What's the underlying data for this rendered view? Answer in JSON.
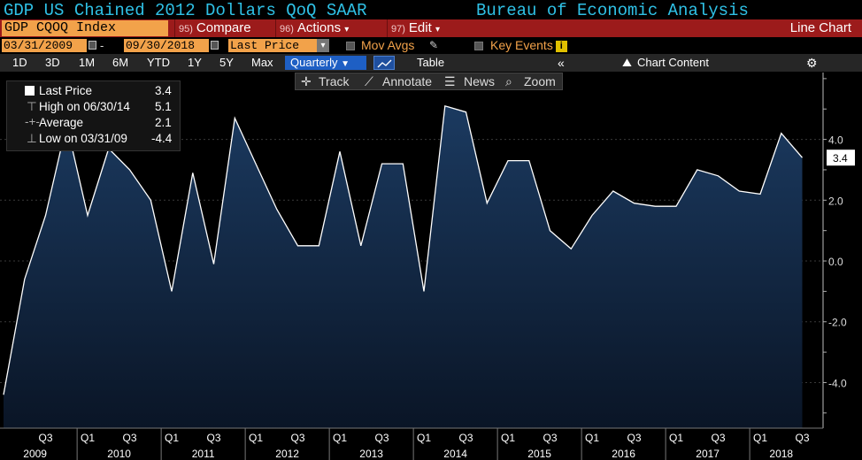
{
  "header": {
    "title": "GDP US Chained 2012 Dollars QoQ SAAR",
    "source": "Bureau of Economic Analysis"
  },
  "menu": {
    "ticker": "GDP CQOQ Index",
    "compare_num": "95)",
    "compare": "Compare",
    "actions_num": "96)",
    "actions": "Actions",
    "edit_num": "97)",
    "edit": "Edit",
    "chart_type": "Line Chart"
  },
  "dates": {
    "start": "03/31/2009",
    "end": "09/30/2018",
    "price_field": "Last Price",
    "mov_avgs": "Mov Avgs",
    "key_events": "Key Events"
  },
  "range": {
    "buttons": [
      "1D",
      "3D",
      "1M",
      "6M",
      "YTD",
      "1Y",
      "5Y",
      "Max"
    ],
    "period": "Quarterly",
    "table": "Table",
    "chart_content": "Chart Content"
  },
  "tools": {
    "track": "Track",
    "annotate": "Annotate",
    "news": "News",
    "zoom": "Zoom"
  },
  "legend": {
    "last_label": "Last Price",
    "last_value": "3.4",
    "high_label": "High on 06/30/14",
    "high_value": "5.1",
    "avg_label": "Average",
    "avg_value": "2.1",
    "low_label": "Low on 03/31/09",
    "low_value": "-4.4"
  },
  "colors": {
    "line": "#ffffff",
    "fill_top": "#1b3a60",
    "fill_bottom": "#0a1526",
    "ticker": "#f2a24a",
    "menubar": "#9c1b1b",
    "title": "#2fc1e6"
  },
  "chart_data": {
    "type": "area",
    "x": [
      "2009Q1",
      "2009Q2",
      "2009Q3",
      "2009Q4",
      "2010Q1",
      "2010Q2",
      "2010Q3",
      "2010Q4",
      "2011Q1",
      "2011Q2",
      "2011Q3",
      "2011Q4",
      "2012Q1",
      "2012Q2",
      "2012Q3",
      "2012Q4",
      "2013Q1",
      "2013Q2",
      "2013Q3",
      "2013Q4",
      "2014Q1",
      "2014Q2",
      "2014Q3",
      "2014Q4",
      "2015Q1",
      "2015Q2",
      "2015Q3",
      "2015Q4",
      "2016Q1",
      "2016Q2",
      "2016Q3",
      "2016Q4",
      "2017Q1",
      "2017Q2",
      "2017Q3",
      "2017Q4",
      "2018Q1",
      "2018Q2",
      "2018Q3"
    ],
    "values": [
      -4.4,
      -0.6,
      1.5,
      4.5,
      1.5,
      3.7,
      3.0,
      2.0,
      -1.0,
      2.9,
      -0.1,
      4.7,
      3.2,
      1.7,
      0.5,
      0.5,
      3.6,
      0.5,
      3.2,
      3.2,
      -1.0,
      5.1,
      4.9,
      1.9,
      3.3,
      3.3,
      1.0,
      0.4,
      1.5,
      2.3,
      1.9,
      1.8,
      1.8,
      3.0,
      2.8,
      2.3,
      2.2,
      4.2,
      3.4
    ],
    "ylim": [
      -5.5,
      6.2
    ],
    "yticks": [
      "-4.0",
      "-2.0",
      "0.0",
      "2.0",
      "4.0"
    ],
    "last_value_label": "3.4",
    "quarter_labels": [
      "Q3",
      "Q1",
      "Q3",
      "Q1",
      "Q3",
      "Q1",
      "Q3",
      "Q1",
      "Q3",
      "Q1",
      "Q3",
      "Q1",
      "Q3",
      "Q1",
      "Q3",
      "Q1",
      "Q3",
      "Q1",
      "Q3"
    ],
    "years": [
      "2009",
      "2010",
      "2011",
      "2012",
      "2013",
      "2014",
      "2015",
      "2016",
      "2017",
      "2018"
    ]
  }
}
